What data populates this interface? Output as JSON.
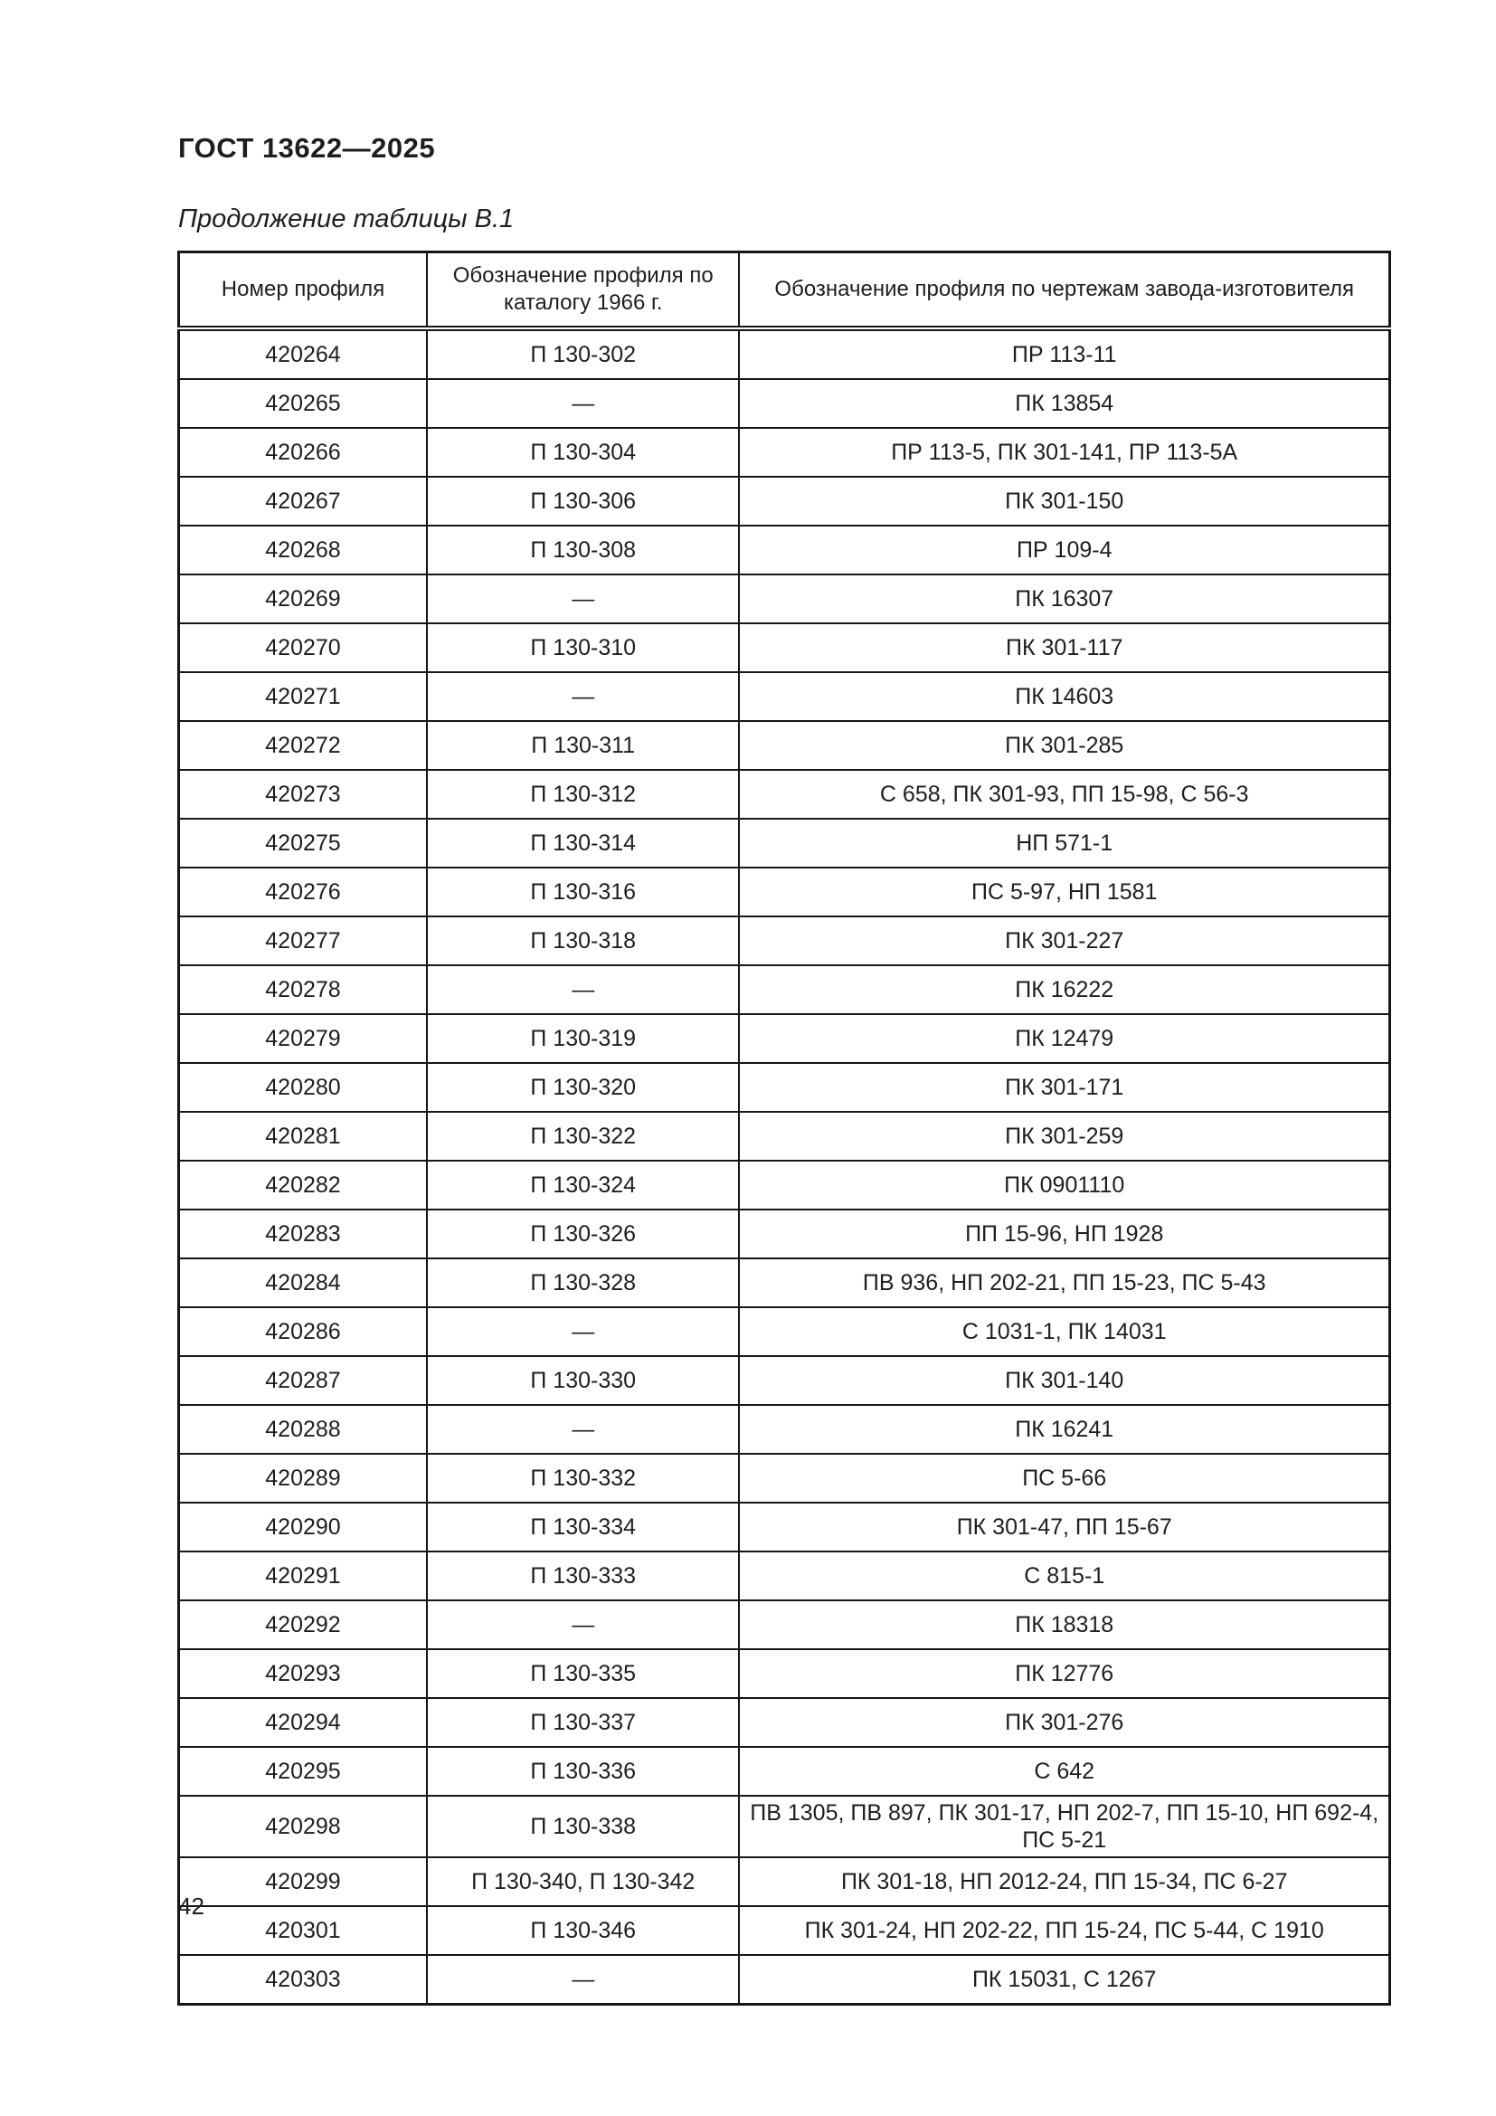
{
  "page": {
    "standard_ref": "ГОСТ 13622—2025",
    "table_caption": "Продолжение таблицы В.1",
    "page_number": "42"
  },
  "table": {
    "columns": [
      "Номер профиля",
      "Обозначение профиля по каталогу 1966 г.",
      "Обозначение профиля по чертежам завода-изготовителя"
    ],
    "rows": [
      [
        "420264",
        "П 130-302",
        "ПР 113-11"
      ],
      [
        "420265",
        "—",
        "ПК 13854"
      ],
      [
        "420266",
        "П 130-304",
        "ПР 113-5, ПК 301-141, ПР 113-5А"
      ],
      [
        "420267",
        "П 130-306",
        "ПК 301-150"
      ],
      [
        "420268",
        "П 130-308",
        "ПР 109-4"
      ],
      [
        "420269",
        "—",
        "ПК 16307"
      ],
      [
        "420270",
        "П 130-310",
        "ПК 301-117"
      ],
      [
        "420271",
        "—",
        "ПК 14603"
      ],
      [
        "420272",
        "П 130-311",
        "ПК 301-285"
      ],
      [
        "420273",
        "П 130-312",
        "С 658, ПК 301-93, ПП 15-98, С 56-3"
      ],
      [
        "420275",
        "П 130-314",
        "НП 571-1"
      ],
      [
        "420276",
        "П 130-316",
        "ПС 5-97, НП 1581"
      ],
      [
        "420277",
        "П 130-318",
        "ПК 301-227"
      ],
      [
        "420278",
        "—",
        "ПК 16222"
      ],
      [
        "420279",
        "П 130-319",
        "ПК 12479"
      ],
      [
        "420280",
        "П 130-320",
        "ПК 301-171"
      ],
      [
        "420281",
        "П 130-322",
        "ПК 301-259"
      ],
      [
        "420282",
        "П 130-324",
        "ПК 0901110"
      ],
      [
        "420283",
        "П 130-326",
        "ПП 15-96, НП 1928"
      ],
      [
        "420284",
        "П 130-328",
        "ПВ 936, НП 202-21, ПП 15-23, ПС 5-43"
      ],
      [
        "420286",
        "—",
        "С 1031-1, ПК 14031"
      ],
      [
        "420287",
        "П 130-330",
        "ПК 301-140"
      ],
      [
        "420288",
        "—",
        "ПК 16241"
      ],
      [
        "420289",
        "П 130-332",
        "ПС 5-66"
      ],
      [
        "420290",
        "П 130-334",
        "ПК 301-47, ПП 15-67"
      ],
      [
        "420291",
        "П 130-333",
        "С 815-1"
      ],
      [
        "420292",
        "—",
        "ПК 18318"
      ],
      [
        "420293",
        "П 130-335",
        "ПК 12776"
      ],
      [
        "420294",
        "П 130-337",
        "ПК 301-276"
      ],
      [
        "420295",
        "П 130-336",
        "С 642"
      ],
      [
        "420298",
        "П 130-338",
        "ПВ 1305, ПВ 897, ПК 301-17, НП 202-7, ПП 15-10, НП 692-4, ПС 5-21"
      ],
      [
        "420299",
        "П 130-340, П 130-342",
        "ПК 301-18, НП 2012-24, ПП 15-34, ПС 6-27"
      ],
      [
        "420301",
        "П 130-346",
        "ПК 301-24, НП 202-22, ПП 15-24, ПС 5-44, С 1910"
      ],
      [
        "420303",
        "—",
        "ПК 15031, С 1267"
      ]
    ]
  }
}
